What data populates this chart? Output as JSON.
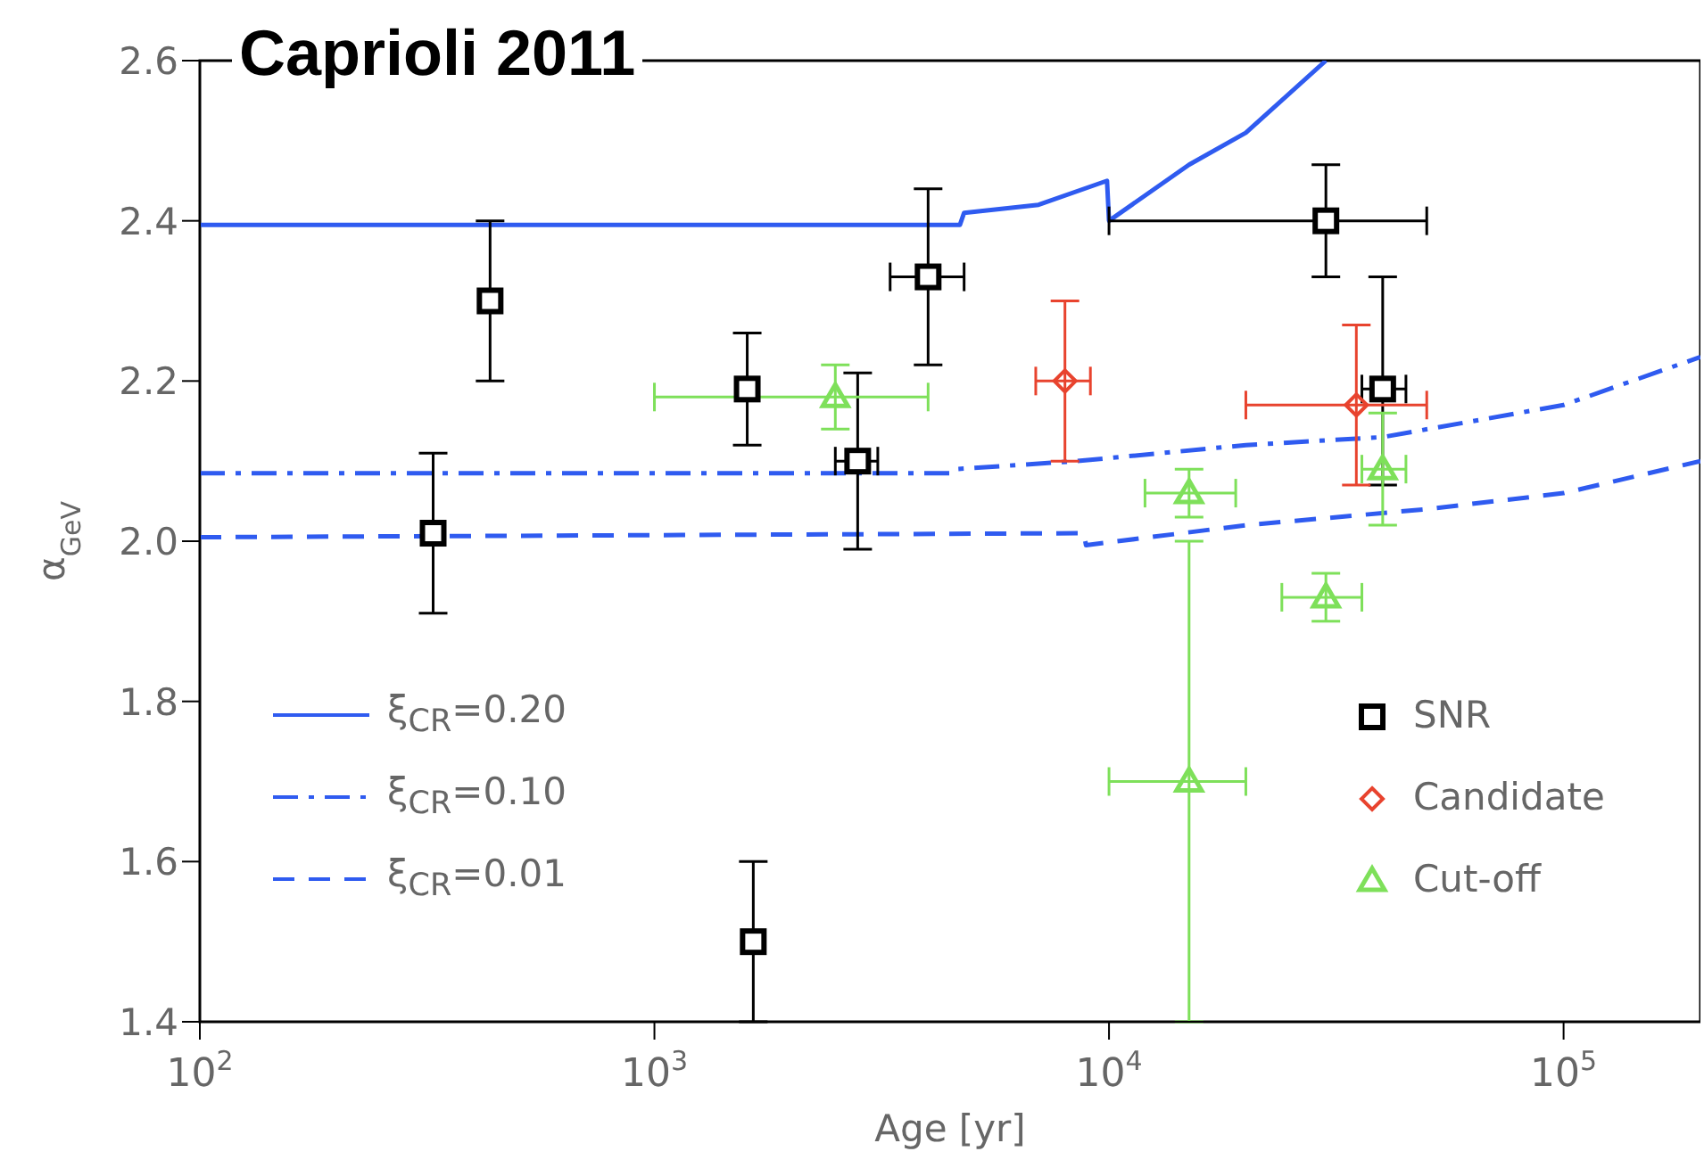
{
  "chart_data": {
    "type": "scatter",
    "title": "Caprioli 2011",
    "xlabel": "Age [yr]",
    "ylabel": "α$_{GeV}$",
    "log": "x",
    "xlim": [
      100,
      200000
    ],
    "xticks": [
      {
        "value": 100,
        "label": "10$^{2}$"
      },
      {
        "value": 1000,
        "label": "10$^{3}$"
      },
      {
        "value": 10000,
        "label": "10$^{4}$"
      },
      {
        "value": 100000,
        "label": "10$^{5}$"
      }
    ],
    "ylim": [
      1.4,
      2.6
    ],
    "yticks": [
      1.4,
      1.6,
      1.8,
      {
        "value": 2,
        "label": "2.0"
      },
      2.2,
      2.4,
      2.6
    ],
    "grid": false,
    "legend": "bottom",
    "series": [
      {
        "name": "ξ$_{CR}$=0.20",
        "type": "line",
        "color": "#2f5bf0",
        "line_style": "solid",
        "marker": "none",
        "x": [
          100,
          4700,
          4800,
          7000,
          9900,
          10000,
          15000,
          20000,
          30000
        ],
        "values": [
          2.395,
          2.395,
          2.41,
          2.42,
          2.45,
          2.4,
          2.47,
          2.51,
          2.6
        ]
      },
      {
        "name": "ξ$_{CR}$=0.10",
        "type": "line",
        "color": "#2f5bf0",
        "line_style": "dashdot",
        "marker": "none",
        "x": [
          100,
          4500,
          4600,
          8500,
          20000,
          40000,
          100000,
          200000
        ],
        "values": [
          2.085,
          2.085,
          2.09,
          2.1,
          2.12,
          2.13,
          2.17,
          2.23
        ]
      },
      {
        "name": "ξ$_{CR}$=0.01",
        "type": "line",
        "color": "#2f5bf0",
        "line_style": "dashed",
        "marker": "none",
        "x": [
          100,
          8800,
          8900,
          20000,
          50000,
          100000,
          200000
        ],
        "values": [
          2.005,
          2.01,
          1.995,
          2.02,
          2.04,
          2.06,
          2.1
        ]
      },
      {
        "name": "SNR",
        "color": "#000000",
        "marker": "square",
        "x": [
          326,
          435,
          1600,
          1650,
          2800,
          4000,
          30000,
          40000
        ],
        "values": [
          2.01,
          2.3,
          2.19,
          1.5,
          2.1,
          2.33,
          2.4,
          2.19
        ],
        "errors": [
          [
            1.91,
            2.11
          ],
          [
            2.2,
            2.4
          ],
          [
            2.12,
            2.26
          ],
          [
            1.4,
            1.6
          ],
          [
            1.99,
            2.21
          ],
          [
            2.22,
            2.44
          ],
          [
            2.33,
            2.47
          ],
          [
            2.07,
            2.33
          ]
        ],
        "xerrors": [
          null,
          null,
          null,
          null,
          [
            2500,
            3100
          ],
          [
            3300,
            4800
          ],
          [
            10000,
            50000
          ],
          [
            36000,
            45000
          ]
        ]
      },
      {
        "name": "Candidate",
        "color": "#e8432e",
        "marker": "diamond",
        "x": [
          8000,
          35000
        ],
        "values": [
          2.2,
          2.17
        ],
        "errors": [
          [
            2.1,
            2.3
          ],
          [
            2.07,
            2.27
          ]
        ],
        "xerrors": [
          [
            6900,
            9100
          ],
          [
            20000,
            50000
          ]
        ]
      },
      {
        "name": "Cut-off",
        "color": "#7ee05a",
        "marker": "triangle",
        "x": [
          2500,
          15000,
          15000,
          30000,
          40000
        ],
        "values": [
          2.18,
          2.06,
          1.7,
          1.93,
          2.09
        ],
        "errors": [
          [
            2.14,
            2.22
          ],
          [
            2.03,
            2.09
          ],
          [
            1.4,
            2.0
          ],
          [
            1.9,
            1.96
          ],
          [
            2.02,
            2.16
          ]
        ],
        "xerrors": [
          [
            1000,
            4000
          ],
          [
            12000,
            19000
          ],
          [
            10000,
            20000
          ],
          [
            24000,
            36000
          ],
          [
            36000,
            45000
          ]
        ]
      }
    ]
  }
}
